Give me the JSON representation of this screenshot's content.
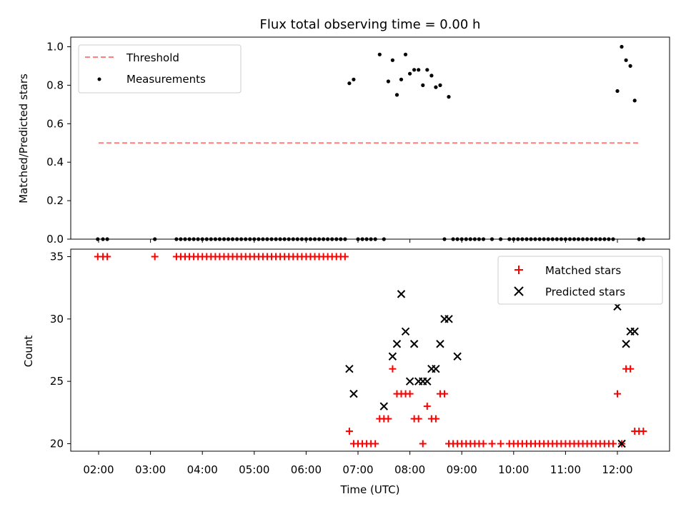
{
  "chart_data": [
    {
      "type": "scatter",
      "title": "Flux total observing time = 0.00 h",
      "xlabel": "",
      "ylabel": "Matched/Predicted stars",
      "ylim": [
        0,
        1.05
      ],
      "yticks": [
        "0.0",
        "0.2",
        "0.4",
        "0.6",
        "0.8",
        "1.0"
      ],
      "grid": false,
      "legend": "top-left",
      "threshold": {
        "name": "Threshold",
        "value": 0.5,
        "x_range": [
          "02:00",
          "12:25"
        ],
        "color": "#ff7f7f"
      },
      "series": [
        {
          "name": "Measurements",
          "color": "#000000",
          "x": [
            "01:59",
            "02:05",
            "02:10",
            "03:05",
            "03:30",
            "03:35",
            "03:40",
            "03:45",
            "03:50",
            "03:55",
            "04:00",
            "04:05",
            "04:10",
            "04:15",
            "04:20",
            "04:25",
            "04:30",
            "04:35",
            "04:40",
            "04:45",
            "04:50",
            "04:55",
            "05:00",
            "05:05",
            "05:10",
            "05:15",
            "05:20",
            "05:25",
            "05:30",
            "05:35",
            "05:40",
            "05:45",
            "05:50",
            "05:55",
            "06:00",
            "06:05",
            "06:10",
            "06:15",
            "06:20",
            "06:25",
            "06:30",
            "06:35",
            "06:40",
            "06:45",
            "06:50",
            "06:55",
            "07:00",
            "07:05",
            "07:10",
            "07:15",
            "07:20",
            "07:25",
            "07:30",
            "07:35",
            "07:40",
            "07:45",
            "07:50",
            "07:55",
            "08:00",
            "08:05",
            "08:10",
            "08:15",
            "08:20",
            "08:25",
            "08:30",
            "08:35",
            "08:40",
            "08:45",
            "08:50",
            "08:55",
            "09:00",
            "09:05",
            "09:10",
            "09:15",
            "09:20",
            "09:25",
            "09:35",
            "09:45",
            "09:55",
            "10:00",
            "10:05",
            "10:10",
            "10:15",
            "10:20",
            "10:25",
            "10:30",
            "10:35",
            "10:40",
            "10:45",
            "10:50",
            "10:55",
            "11:00",
            "11:05",
            "11:10",
            "11:15",
            "11:20",
            "11:25",
            "11:30",
            "11:35",
            "11:40",
            "11:45",
            "11:50",
            "11:55",
            "12:00",
            "12:05",
            "12:10",
            "12:15",
            "12:20",
            "12:25",
            "12:30"
          ],
          "y": [
            0,
            0,
            0,
            0,
            0,
            0,
            0,
            0,
            0,
            0,
            0,
            0,
            0,
            0,
            0,
            0,
            0,
            0,
            0,
            0,
            0,
            0,
            0,
            0,
            0,
            0,
            0,
            0,
            0,
            0,
            0,
            0,
            0,
            0,
            0,
            0,
            0,
            0,
            0,
            0,
            0,
            0,
            0,
            0,
            0.81,
            0.83,
            0,
            0,
            0,
            0,
            0,
            0.96,
            0,
            0.82,
            0.93,
            0.75,
            0.83,
            0.96,
            0.86,
            0.88,
            0.88,
            0.8,
            0.88,
            0.85,
            0.79,
            0.8,
            0,
            0.74,
            0,
            0,
            0,
            0,
            0,
            0,
            0,
            0,
            0,
            0,
            0,
            0,
            0,
            0,
            0,
            0,
            0,
            0,
            0,
            0,
            0,
            0,
            0,
            0,
            0,
            0,
            0,
            0,
            0,
            0,
            0,
            0,
            0,
            0,
            0,
            0.77,
            1.0,
            0.93,
            0.9,
            0.72,
            0,
            0
          ]
        }
      ]
    },
    {
      "type": "scatter",
      "title": "",
      "xlabel": "Time (UTC)",
      "ylabel": "Count",
      "ylim": [
        19.4,
        35.6
      ],
      "yticks": [
        "20",
        "25",
        "30",
        "35"
      ],
      "xticks": [
        "02:00",
        "03:00",
        "04:00",
        "05:00",
        "06:00",
        "07:00",
        "08:00",
        "09:00",
        "10:00",
        "11:00",
        "12:00"
      ],
      "grid": false,
      "legend": "top-right",
      "series": [
        {
          "name": "Matched stars",
          "marker": "plus",
          "color": "#ff0000",
          "x": [
            "01:59",
            "02:05",
            "02:10",
            "03:05",
            "03:30",
            "03:35",
            "03:40",
            "03:45",
            "03:50",
            "03:55",
            "04:00",
            "04:05",
            "04:10",
            "04:15",
            "04:20",
            "04:25",
            "04:30",
            "04:35",
            "04:40",
            "04:45",
            "04:50",
            "04:55",
            "05:00",
            "05:05",
            "05:10",
            "05:15",
            "05:20",
            "05:25",
            "05:30",
            "05:35",
            "05:40",
            "05:45",
            "05:50",
            "05:55",
            "06:00",
            "06:05",
            "06:10",
            "06:15",
            "06:20",
            "06:25",
            "06:30",
            "06:35",
            "06:40",
            "06:45",
            "06:50",
            "06:55",
            "07:00",
            "07:05",
            "07:10",
            "07:15",
            "07:20",
            "07:25",
            "07:30",
            "07:35",
            "07:40",
            "07:45",
            "07:50",
            "07:55",
            "08:00",
            "08:05",
            "08:10",
            "08:15",
            "08:20",
            "08:25",
            "08:30",
            "08:35",
            "08:40",
            "08:45",
            "08:50",
            "08:55",
            "09:00",
            "09:05",
            "09:10",
            "09:15",
            "09:20",
            "09:25",
            "09:35",
            "09:45",
            "09:55",
            "10:00",
            "10:05",
            "10:10",
            "10:15",
            "10:20",
            "10:25",
            "10:30",
            "10:35",
            "10:40",
            "10:45",
            "10:50",
            "10:55",
            "11:00",
            "11:05",
            "11:10",
            "11:15",
            "11:20",
            "11:25",
            "11:30",
            "11:35",
            "11:40",
            "11:45",
            "11:50",
            "11:55",
            "12:00",
            "12:05",
            "12:10",
            "12:15",
            "12:20",
            "12:25",
            "12:30"
          ],
          "y": [
            35,
            35,
            35,
            35,
            35,
            35,
            35,
            35,
            35,
            35,
            35,
            35,
            35,
            35,
            35,
            35,
            35,
            35,
            35,
            35,
            35,
            35,
            35,
            35,
            35,
            35,
            35,
            35,
            35,
            35,
            35,
            35,
            35,
            35,
            35,
            35,
            35,
            35,
            35,
            35,
            35,
            35,
            35,
            35,
            21,
            20,
            20,
            20,
            20,
            20,
            20,
            22,
            22,
            22,
            26,
            24,
            24,
            24,
            24,
            22,
            22,
            20,
            23,
            22,
            22,
            24,
            24,
            20,
            20,
            20,
            20,
            20,
            20,
            20,
            20,
            20,
            20,
            20,
            20,
            20,
            20,
            20,
            20,
            20,
            20,
            20,
            20,
            20,
            20,
            20,
            20,
            20,
            20,
            20,
            20,
            20,
            20,
            20,
            20,
            20,
            20,
            20,
            20,
            24,
            20,
            26,
            26,
            21,
            21,
            21
          ]
        },
        {
          "name": "Predicted stars",
          "marker": "x",
          "color": "#000000",
          "x": [
            "06:50",
            "06:55",
            "07:30",
            "07:40",
            "07:45",
            "07:50",
            "07:55",
            "08:00",
            "08:05",
            "08:10",
            "08:15",
            "08:20",
            "08:25",
            "08:30",
            "08:35",
            "08:40",
            "08:45",
            "08:55",
            "12:00",
            "12:05",
            "12:10",
            "12:15",
            "12:20"
          ],
          "y": [
            26,
            24,
            23,
            27,
            28,
            32,
            29,
            25,
            28,
            25,
            25,
            25,
            26,
            26,
            28,
            30,
            30,
            27,
            31,
            20,
            28,
            29,
            29
          ]
        }
      ]
    }
  ]
}
